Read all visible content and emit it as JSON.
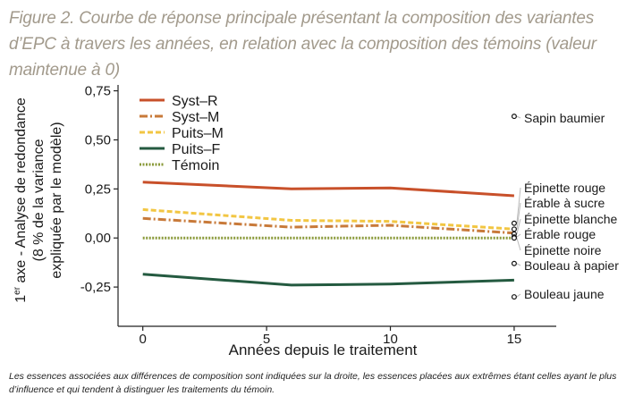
{
  "caption": "Figure 2. Courbe de réponse principale présentant la composition des variantes d’EPC à travers les années, en relation avec la composition des témoins (valeur maintenue à 0)",
  "footnote": "Les essences associées aux différences de composition sont indiquées sur la droite, les essences placées aux extrêmes étant celles ayant le plus d’influence et qui tendent à distinguer les traitements du témoin.",
  "colors": {
    "syst_r": "#c8502a",
    "syst_m": "#c87a3a",
    "puits_m": "#f2c643",
    "puits_f": "#245a40",
    "temoin": "#8a9a3a"
  },
  "chart_data": {
    "type": "line",
    "title": "",
    "xlabel": "Années depuis le traitement",
    "ylabel_lines": [
      "1er axe - Analyse de redondance",
      "(8 % de la variance",
      "expliquée par le modèle)"
    ],
    "ylabel_sup": "er",
    "xlim": [
      -1,
      16.7
    ],
    "ylim": [
      -0.45,
      0.78
    ],
    "xticks": [
      0,
      5,
      10,
      15
    ],
    "xtick_labels": [
      "0",
      "5",
      "10",
      "15"
    ],
    "yticks": [
      0.75,
      0.5,
      0.25,
      0.0,
      -0.25
    ],
    "ytick_labels": [
      "0,75",
      "0,50",
      "0,25",
      "0,00",
      "-0,25"
    ],
    "x": [
      0,
      6,
      10,
      15
    ],
    "series": [
      {
        "name": "Syst–R",
        "values": [
          0.285,
          0.25,
          0.255,
          0.215
        ],
        "style": "solid"
      },
      {
        "name": "Syst–M",
        "values": [
          0.1,
          0.055,
          0.065,
          0.025
        ],
        "style": "dashdot"
      },
      {
        "name": "Puits–M",
        "values": [
          0.145,
          0.09,
          0.085,
          0.045
        ],
        "style": "dashed"
      },
      {
        "name": "Puits–F",
        "values": [
          -0.185,
          -0.24,
          -0.235,
          -0.215
        ],
        "style": "solid"
      },
      {
        "name": "Témoin",
        "values": [
          0.0,
          0.0,
          0.0,
          0.0
        ],
        "style": "dotted"
      }
    ],
    "species": [
      {
        "name": "Sapin baumier",
        "score": 0.62
      },
      {
        "name": "Épinette rouge",
        "score": 0.075
      },
      {
        "name": "Érable à sucre",
        "score": 0.045
      },
      {
        "name": "Épinette blanche",
        "score": 0.02
      },
      {
        "name": "Érable rouge",
        "score": 0.005
      },
      {
        "name": "Épinette noire",
        "score": 0.0
      },
      {
        "name": "Bouleau à papier",
        "score": -0.13
      },
      {
        "name": "Bouleau jaune",
        "score": -0.3
      }
    ],
    "legend_position": "top-left"
  }
}
